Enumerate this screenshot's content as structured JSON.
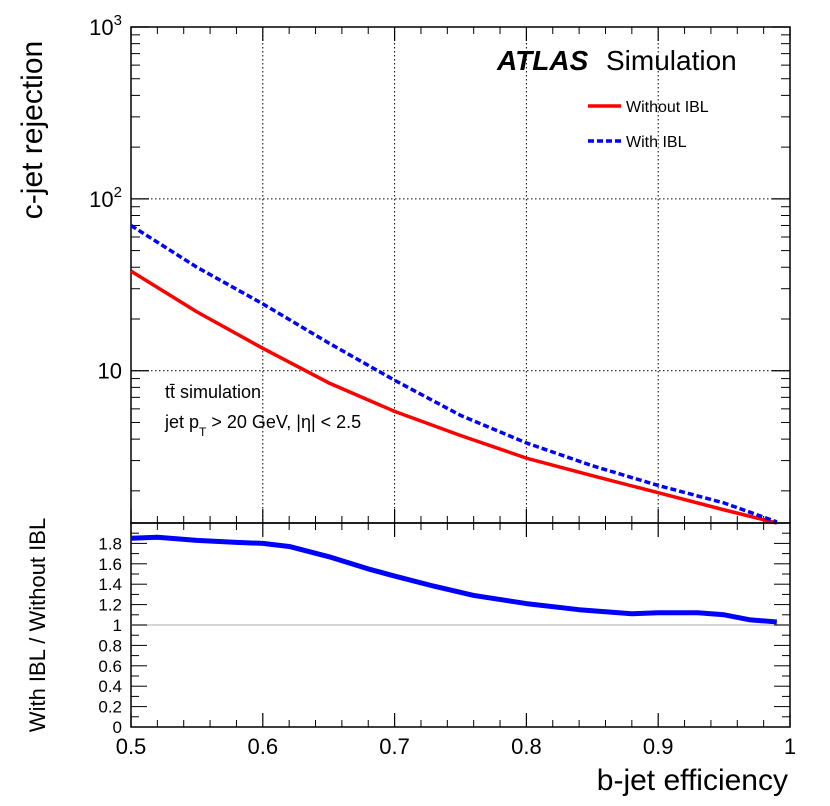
{
  "chart_data": [
    {
      "type": "line",
      "title": "",
      "experiment": "ATLAS",
      "experiment_sub": "Simulation",
      "xlabel": "b-jet efficiency",
      "ylabel": "c-jet rejection",
      "xlim": [
        0.5,
        1.0
      ],
      "ylim": [
        1.3,
        1000
      ],
      "yscale": "log",
      "grid": true,
      "legend_position": "top-right",
      "x_ticks": [
        0.5,
        0.6,
        0.7,
        0.8,
        0.9,
        1.0
      ],
      "y_tick_labels": [
        {
          "base": "10",
          "exp": "3"
        },
        {
          "base": "10",
          "exp": "2"
        },
        {
          "base": "10",
          "exp": ""
        }
      ],
      "annotation_line1": "tt̄ simulation",
      "annotation_line2_prefix": "jet p",
      "annotation_line2_sub": "T",
      "annotation_line2_suffix": " > 20 GeV, |η| < 2.5",
      "series": [
        {
          "name": "Without IBL",
          "color": "#ff0000",
          "style": "solid",
          "x": [
            0.5,
            0.55,
            0.6,
            0.65,
            0.7,
            0.75,
            0.8,
            0.85,
            0.9,
            0.95,
            0.99
          ],
          "y": [
            38,
            22,
            13.5,
            8.5,
            5.8,
            4.2,
            3.1,
            2.45,
            1.95,
            1.55,
            1.3
          ]
        },
        {
          "name": "With IBL",
          "color": "#0000ff",
          "style": "dashed",
          "x": [
            0.5,
            0.55,
            0.6,
            0.65,
            0.7,
            0.75,
            0.8,
            0.85,
            0.9,
            0.95,
            0.99
          ],
          "y": [
            70,
            40,
            24.5,
            14.5,
            8.8,
            5.5,
            3.8,
            2.8,
            2.15,
            1.7,
            1.32
          ]
        }
      ]
    },
    {
      "type": "line",
      "title": "",
      "xlabel": "b-jet efficiency",
      "ylabel": "With IBL / Without IBL",
      "xlim": [
        0.5,
        1.0
      ],
      "ylim": [
        0,
        2.0
      ],
      "reference_line": 1.0,
      "y_ticks": [
        "0",
        "0.2",
        "0.4",
        "0.6",
        "0.8",
        "1",
        "1.2",
        "1.4",
        "1.6",
        "1.8"
      ],
      "series": [
        {
          "name": "With IBL / Without IBL",
          "color": "#0000ff",
          "style": "solid",
          "x": [
            0.5,
            0.52,
            0.55,
            0.58,
            0.6,
            0.62,
            0.65,
            0.68,
            0.7,
            0.73,
            0.76,
            0.8,
            0.84,
            0.87,
            0.88,
            0.9,
            0.93,
            0.95,
            0.97,
            0.99
          ],
          "y": [
            1.85,
            1.86,
            1.83,
            1.81,
            1.8,
            1.77,
            1.67,
            1.55,
            1.48,
            1.38,
            1.29,
            1.21,
            1.15,
            1.12,
            1.11,
            1.12,
            1.12,
            1.1,
            1.05,
            1.03
          ]
        }
      ]
    }
  ]
}
